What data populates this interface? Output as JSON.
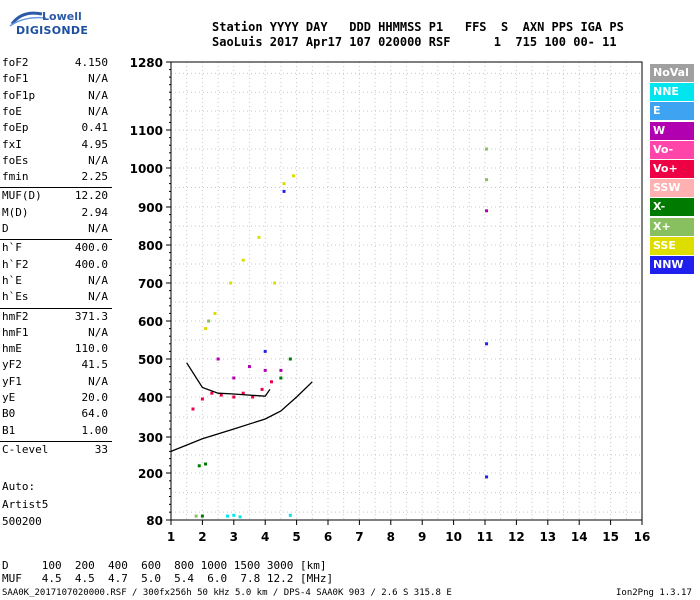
{
  "logo": {
    "line1": "Lowell",
    "line2": "DIGISONDE"
  },
  "header": {
    "line1": "Station YYYY DAY   DDD HHMMSS P1   FFS  S  AXN PPS IGA PS",
    "line2": "SaoLuis 2017 Apr17 107 020000 RSF      1  715 100 00- 11"
  },
  "params": [
    {
      "label": "foF2",
      "value": "4.150"
    },
    {
      "label": "foF1",
      "value": "N/A"
    },
    {
      "label": "foF1p",
      "value": "N/A"
    },
    {
      "label": "foE",
      "value": "N/A"
    },
    {
      "label": "foEp",
      "value": "0.41"
    },
    {
      "label": "fxI",
      "value": "4.95"
    },
    {
      "label": "foEs",
      "value": "N/A"
    },
    {
      "label": "fmin",
      "value": "2.25"
    },
    {
      "label": "MUF(D)",
      "value": "12.20"
    },
    {
      "label": "M(D)",
      "value": "2.94"
    },
    {
      "label": "D",
      "value": "N/A"
    },
    {
      "label": "h`F",
      "value": "400.0"
    },
    {
      "label": "h`F2",
      "value": "400.0"
    },
    {
      "label": "h`E",
      "value": "N/A"
    },
    {
      "label": "h`Es",
      "value": "N/A"
    },
    {
      "label": "hmF2",
      "value": "371.3"
    },
    {
      "label": "hmF1",
      "value": "N/A"
    },
    {
      "label": "hmE",
      "value": "110.0"
    },
    {
      "label": "yF2",
      "value": "41.5"
    },
    {
      "label": "yF1",
      "value": "N/A"
    },
    {
      "label": "yE",
      "value": "20.0"
    },
    {
      "label": "B0",
      "value": "64.0"
    },
    {
      "label": "B1",
      "value": "1.00"
    },
    {
      "label": "C-level",
      "value": "33"
    }
  ],
  "auto": {
    "line1": "Auto:",
    "line2": "Artist5",
    "line3": "500200"
  },
  "legend": [
    {
      "label": "NoVal",
      "color": "#a0a0a0"
    },
    {
      "label": "NNE",
      "color": "#00e5ee"
    },
    {
      "label": "E",
      "color": "#3ea3f0"
    },
    {
      "label": "W",
      "color": "#b000b0"
    },
    {
      "label": "Vo-",
      "color": "#ff44aa"
    },
    {
      "label": "Vo+",
      "color": "#ee0044"
    },
    {
      "label": "SSW",
      "color": "#ffb0b0"
    },
    {
      "label": "X-",
      "color": "#007a00"
    },
    {
      "label": "X+",
      "color": "#88c060"
    },
    {
      "label": "SSE",
      "color": "#dddd00"
    },
    {
      "label": "NNW",
      "color": "#2020ee"
    }
  ],
  "bottom": {
    "line1": "D     100  200  400  600  800 1000 1500 3000 [km]",
    "line2": "MUF   4.5  4.5  4.7  5.0  5.4  6.0  7.8 12.2 [MHz]"
  },
  "footer": {
    "left": "SAA0K_2017107020000.RSF / 300fx256h 50 kHz 5.0 km / DPS-4 SAA0K 903 / 2.6 S 315.8 E",
    "right": "Ion2Png 1.3.17"
  },
  "chart_data": {
    "type": "scatter",
    "xlabel": "",
    "ylabel": "",
    "x_ticks": [
      1,
      2,
      3,
      4,
      5,
      6,
      7,
      8,
      9,
      10,
      11,
      12,
      13,
      14,
      15,
      16
    ],
    "y_ticks": [
      80,
      200,
      300,
      400,
      500,
      600,
      700,
      800,
      900,
      1000,
      1100,
      1280
    ],
    "xlim": [
      1,
      16
    ],
    "ylim": [
      80,
      1280
    ],
    "grid": true,
    "series": [
      {
        "name": "Vo+",
        "color": "#ee0044",
        "x": [
          1.7,
          2.0,
          2.3,
          2.6,
          3.0,
          3.3,
          3.6,
          3.9,
          4.2
        ],
        "y": [
          370,
          395,
          410,
          405,
          400,
          410,
          400,
          420,
          440
        ]
      },
      {
        "name": "SSE",
        "color": "#dddd00",
        "x": [
          2.1,
          2.4,
          2.9,
          3.3,
          3.8,
          4.3,
          4.6,
          4.9
        ],
        "y": [
          580,
          620,
          700,
          760,
          820,
          700,
          960,
          980
        ]
      },
      {
        "name": "W",
        "color": "#b000b0",
        "x": [
          2.5,
          3.0,
          3.5,
          4.0,
          4.5,
          11.05
        ],
        "y": [
          500,
          450,
          480,
          470,
          470,
          890
        ]
      },
      {
        "name": "NNW",
        "color": "#2020ee",
        "x": [
          4.0,
          4.6,
          11.05,
          11.05
        ],
        "y": [
          520,
          940,
          540,
          190
        ]
      },
      {
        "name": "X-",
        "color": "#007a00",
        "x": [
          1.9,
          2.0,
          2.1,
          4.5,
          4.8
        ],
        "y": [
          220,
          90,
          225,
          450,
          500
        ]
      },
      {
        "name": "X+",
        "color": "#88c060",
        "x": [
          1.8,
          2.2,
          11.05,
          11.05
        ],
        "y": [
          90,
          600,
          970,
          1050
        ]
      },
      {
        "name": "NNE",
        "color": "#00e5ee",
        "x": [
          2.8,
          3.0,
          3.2,
          4.8
        ],
        "y": [
          90,
          92,
          88,
          92
        ]
      }
    ],
    "traces": [
      {
        "name": "profile",
        "x": [
          1.0,
          2.0,
          3.0,
          4.0,
          4.5,
          5.0,
          5.5
        ],
        "y": [
          260,
          295,
          320,
          345,
          365,
          400,
          440
        ]
      },
      {
        "name": "h-trace",
        "x": [
          1.5,
          2.0,
          2.5,
          3.0,
          3.5,
          4.0,
          4.15
        ],
        "y": [
          490,
          425,
          410,
          408,
          405,
          402,
          420
        ]
      }
    ]
  }
}
